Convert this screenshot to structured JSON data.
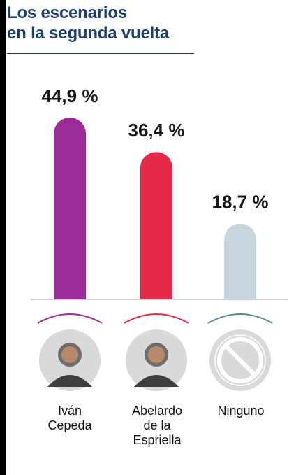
{
  "title": {
    "line1": "Los escenarios",
    "line2": "en la segunda vuelta"
  },
  "colors": {
    "title": "#1b3f73",
    "cepeda": "#9c2a99",
    "espriella": "#e5294a",
    "ninguno": "#c7d5de",
    "axis": "#9aa0a6"
  },
  "chart_data": {
    "type": "bar",
    "title": "Los escenarios en la segunda vuelta",
    "categories": [
      "Iván Cepeda",
      "Abelardo de la Espriella",
      "Ninguno"
    ],
    "values": [
      44.9,
      36.4,
      18.7
    ],
    "value_labels": [
      "44,9 %",
      "36,4 %",
      "18,7 %"
    ],
    "unit": "%",
    "ylim": [
      0,
      50
    ],
    "grid": false,
    "legend": "none"
  },
  "candidates": [
    {
      "label_lines": [
        "Iván",
        "Cepeda"
      ],
      "icon": "person-portrait-icon"
    },
    {
      "label_lines": [
        "Abelardo",
        "de la",
        "Espriella"
      ],
      "icon": "person-portrait-icon"
    },
    {
      "label_lines": [
        "Ninguno"
      ],
      "icon": "prohibited-icon"
    }
  ]
}
